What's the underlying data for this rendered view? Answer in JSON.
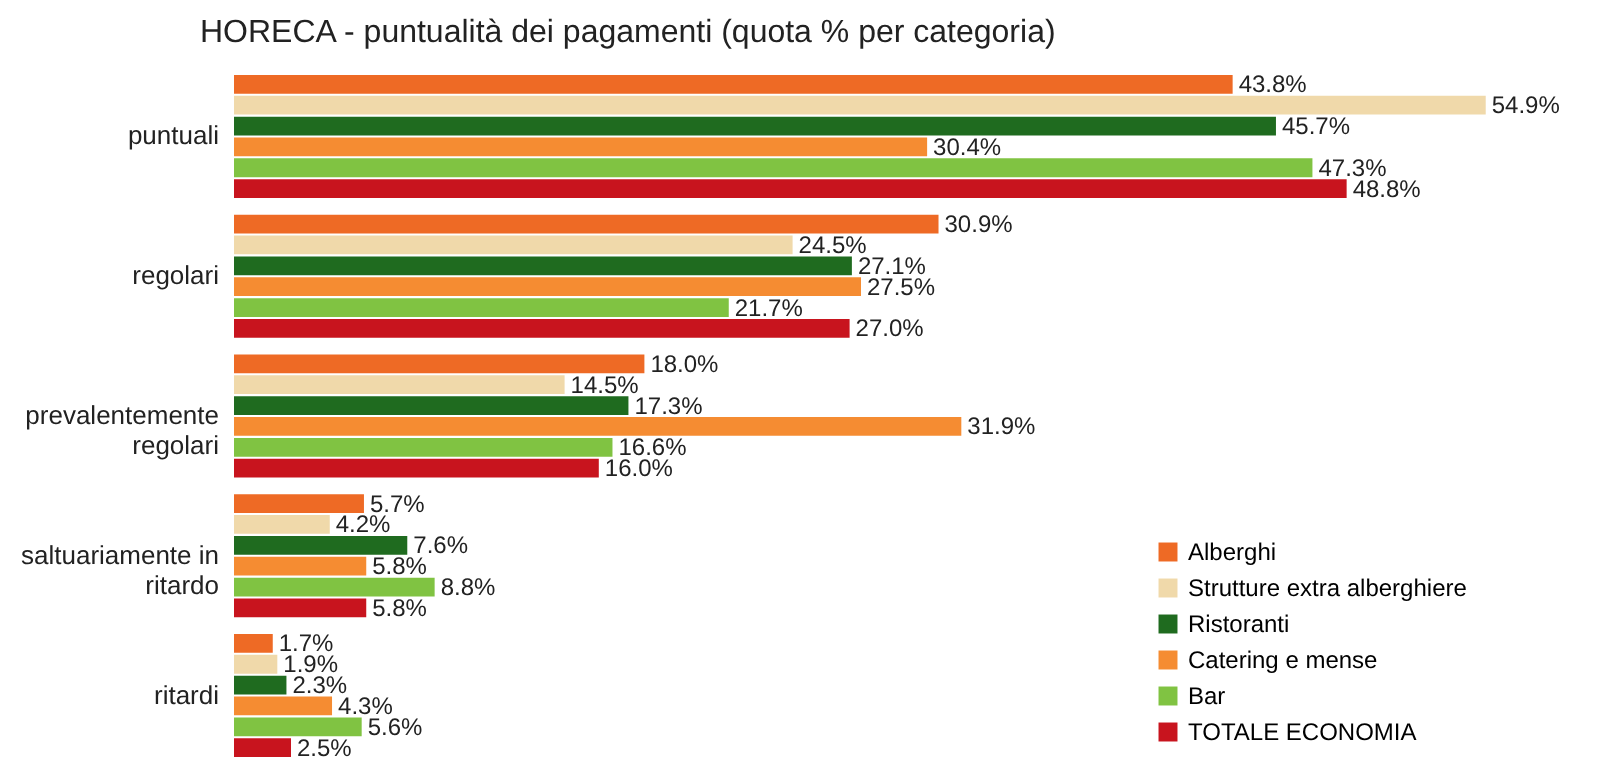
{
  "chart_data": {
    "type": "bar",
    "orientation": "horizontal",
    "title": "HORECA - puntualità dei pagamenti  (quota % per categoria)",
    "categories": [
      "puntuali",
      "regolari",
      "prevalentemente regolari",
      "saltuariamente in ritardo",
      "ritardi"
    ],
    "series": [
      {
        "name": "Alberghi",
        "color": "#ee6a25",
        "values": [
          43.8,
          30.9,
          18.0,
          5.7,
          1.7
        ],
        "value_labels": [
          "43.8%",
          "30.9%",
          "18.0%",
          "5.7%",
          "1.7%"
        ]
      },
      {
        "name": "Strutture extra alberghiere",
        "color": "#f0d9aa",
        "values": [
          54.9,
          24.5,
          14.5,
          4.2,
          1.9
        ],
        "value_labels": [
          "54.9%",
          "24.5%",
          "14.5%",
          "4.2%",
          "1.9%"
        ]
      },
      {
        "name": "Ristoranti",
        "color": "#1f6b1f",
        "values": [
          45.7,
          27.1,
          17.3,
          7.6,
          2.3
        ],
        "value_labels": [
          "45.7%",
          "27.1%",
          "17.3%",
          "7.6%",
          "2.3%"
        ]
      },
      {
        "name": "Catering e mense",
        "color": "#f58c32",
        "values": [
          30.4,
          27.5,
          31.9,
          5.8,
          4.3
        ],
        "value_labels": [
          "30.4%",
          "27.5%",
          "31.9%",
          "5.8%",
          "4.3%"
        ]
      },
      {
        "name": "Bar",
        "color": "#80c342",
        "values": [
          47.3,
          21.7,
          16.6,
          8.8,
          5.6
        ],
        "value_labels": [
          "47.3%",
          "21.7%",
          "16.6%",
          "8.8%",
          "5.6%"
        ]
      },
      {
        "name": "TOTALE ECONOMIA",
        "color": "#c8141e",
        "values": [
          48.8,
          27.0,
          16.0,
          5.8,
          2.5
        ],
        "value_labels": [
          "48.8%",
          "27.0%",
          "16.0%",
          "5.8%",
          "2.5%"
        ]
      }
    ],
    "legend": "bottom right",
    "grid": false
  }
}
